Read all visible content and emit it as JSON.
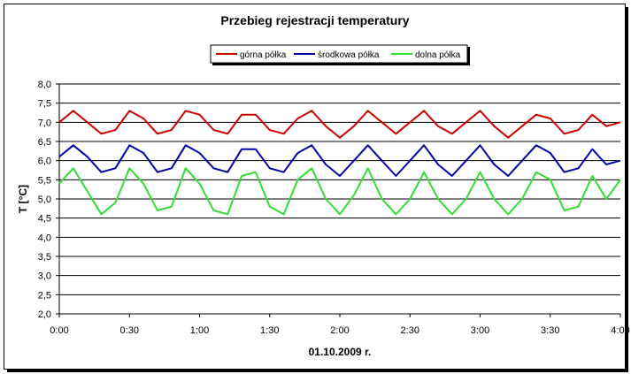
{
  "chart_data": {
    "type": "line",
    "title": "Przebieg rejestracji temperatury",
    "xlabel": "01.10.2009 r.",
    "ylabel": "T [°C]",
    "ylim": [
      2.0,
      8.0
    ],
    "yticks": [
      "2,0",
      "2,5",
      "3,0",
      "3,5",
      "4,0",
      "4,5",
      "5,0",
      "5,5",
      "6,0",
      "6,5",
      "7,0",
      "7,5",
      "8,0"
    ],
    "xlim": [
      "0:00",
      "4:00"
    ],
    "xticks": [
      "0:00",
      "0:30",
      "1:00",
      "1:30",
      "2:00",
      "2:30",
      "3:00",
      "3:30",
      "4:00"
    ],
    "grid": "horizontal",
    "legend_position": "top",
    "x": [
      "0:00",
      "0:06",
      "0:12",
      "0:18",
      "0:24",
      "0:30",
      "0:36",
      "0:42",
      "0:48",
      "0:54",
      "1:00",
      "1:06",
      "1:12",
      "1:18",
      "1:24",
      "1:30",
      "1:36",
      "1:42",
      "1:48",
      "1:54",
      "2:00",
      "2:06",
      "2:12",
      "2:18",
      "2:24",
      "2:30",
      "2:36",
      "2:42",
      "2:48",
      "2:54",
      "3:00",
      "3:06",
      "3:12",
      "3:18",
      "3:24",
      "3:30",
      "3:36",
      "3:42",
      "3:48",
      "3:54",
      "4:00"
    ],
    "series": [
      {
        "name": "górna półka",
        "color": "#cc0000",
        "values": [
          7.0,
          7.3,
          7.0,
          6.7,
          6.8,
          7.3,
          7.1,
          6.7,
          6.8,
          7.3,
          7.2,
          6.8,
          6.7,
          7.2,
          7.2,
          6.8,
          6.7,
          7.1,
          7.3,
          6.9,
          6.6,
          6.9,
          7.3,
          7.0,
          6.7,
          7.0,
          7.3,
          6.9,
          6.7,
          7.0,
          7.3,
          6.9,
          6.6,
          6.9,
          7.2,
          7.1,
          6.7,
          6.8,
          7.2,
          6.9,
          7.0
        ]
      },
      {
        "name": "środkowa półka",
        "color": "#0000aa",
        "values": [
          6.1,
          6.4,
          6.1,
          5.7,
          5.8,
          6.4,
          6.2,
          5.7,
          5.8,
          6.4,
          6.2,
          5.8,
          5.7,
          6.3,
          6.3,
          5.8,
          5.7,
          6.2,
          6.4,
          5.9,
          5.6,
          6.0,
          6.4,
          6.0,
          5.6,
          6.0,
          6.4,
          5.9,
          5.6,
          6.0,
          6.4,
          5.9,
          5.6,
          6.0,
          6.4,
          6.2,
          5.7,
          5.8,
          6.3,
          5.9,
          6.0
        ]
      },
      {
        "name": "dolna półka",
        "color": "#33dd33",
        "values": [
          5.4,
          5.8,
          5.2,
          4.6,
          4.9,
          5.8,
          5.4,
          4.7,
          4.8,
          5.8,
          5.4,
          4.7,
          4.6,
          5.6,
          5.7,
          4.8,
          4.6,
          5.5,
          5.8,
          5.0,
          4.6,
          5.1,
          5.8,
          5.0,
          4.6,
          5.0,
          5.7,
          5.0,
          4.6,
          5.0,
          5.7,
          5.0,
          4.6,
          5.0,
          5.7,
          5.5,
          4.7,
          4.8,
          5.6,
          5.0,
          5.5
        ]
      }
    ]
  }
}
